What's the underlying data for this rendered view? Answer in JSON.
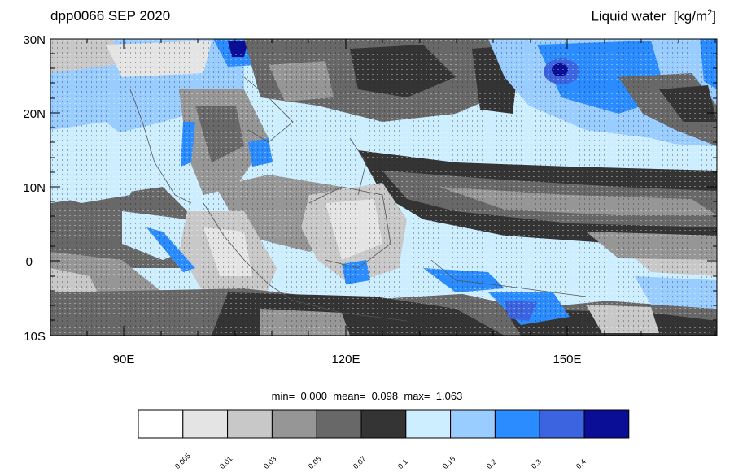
{
  "map": {
    "left_title": "dpp0066 SEP 2020",
    "right_title": "Liquid water",
    "right_units_prefix": "[kg/m",
    "right_units_exp": "2",
    "right_units_suffix": "]",
    "lat_labels": [
      "30N",
      "20N",
      "10N",
      "0",
      "10S"
    ],
    "lon_labels": [
      "90E",
      "120E",
      "150E"
    ],
    "stats": {
      "min_label": "min=",
      "min_value": "0.000",
      "mean_label": "mean=",
      "mean_value": "0.098",
      "max_label": "max=",
      "max_value": "1.063"
    }
  },
  "colorbar": {
    "colors": [
      "#ffffff",
      "#e4e4e4",
      "#c8c8c8",
      "#969696",
      "#686868",
      "#343434",
      "#cdeeff",
      "#99ccff",
      "#2b8cff",
      "#3d64e0",
      "#0a0d96"
    ],
    "labels": [
      "0.005",
      "0.01",
      "0.03",
      "0.05",
      "0.07",
      "0.1",
      "0.15",
      "0.2",
      "0.3",
      "0.4"
    ]
  }
}
